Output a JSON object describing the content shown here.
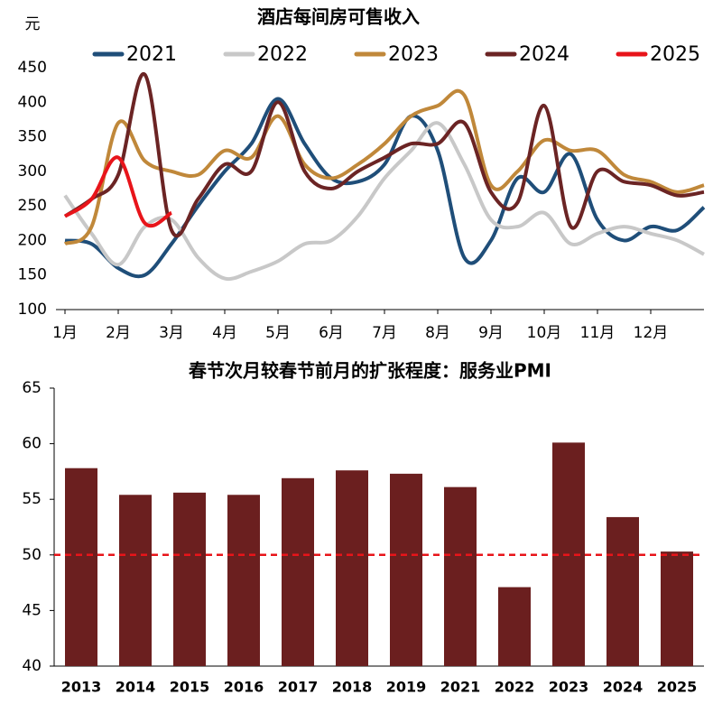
{
  "chart_data": [
    {
      "type": "line",
      "title": "酒店每间房可售收入",
      "y_label": "元",
      "x": [
        1,
        1.5,
        2,
        2.5,
        3,
        3.5,
        4,
        4.5,
        5,
        5.5,
        6,
        6.5,
        7,
        7.5,
        8,
        8.5,
        9,
        9.5,
        10,
        10.5,
        11,
        11.5,
        12,
        12.5,
        13
      ],
      "xlim": [
        1,
        13
      ],
      "xticks": [
        {
          "value": 1,
          "label": "1月"
        },
        {
          "value": 2,
          "label": "2月"
        },
        {
          "value": 3,
          "label": "3月"
        },
        {
          "value": 4,
          "label": "4月"
        },
        {
          "value": 5,
          "label": "5月"
        },
        {
          "value": 6,
          "label": "6月"
        },
        {
          "value": 7,
          "label": "7月"
        },
        {
          "value": 8,
          "label": "8月"
        },
        {
          "value": 9,
          "label": "9月"
        },
        {
          "value": 10,
          "label": "10月"
        },
        {
          "value": 11,
          "label": "11月"
        },
        {
          "value": 12,
          "label": "12月"
        }
      ],
      "ylim": [
        100,
        450
      ],
      "yticks": [
        100,
        150,
        200,
        250,
        300,
        350,
        400,
        450
      ],
      "series": [
        {
          "name": "2021",
          "color": "#1f4e79",
          "values": [
            200,
            195,
            160,
            150,
            195,
            250,
            300,
            340,
            405,
            340,
            290,
            285,
            310,
            380,
            330,
            175,
            200,
            290,
            270,
            325,
            230,
            200,
            220,
            215,
            248
          ]
        },
        {
          "name": "2022",
          "color": "#c8c8c8",
          "values": [
            265,
            210,
            165,
            220,
            230,
            175,
            145,
            155,
            170,
            195,
            200,
            235,
            290,
            330,
            370,
            310,
            230,
            220,
            240,
            195,
            210,
            220,
            210,
            200,
            180
          ]
        },
        {
          "name": "2023",
          "color": "#c0883a",
          "values": [
            195,
            220,
            370,
            315,
            300,
            295,
            330,
            320,
            380,
            310,
            290,
            310,
            340,
            380,
            395,
            410,
            280,
            300,
            345,
            330,
            330,
            295,
            285,
            270,
            280
          ]
        },
        {
          "name": "2024",
          "color": "#6b2424",
          "values": [
            235,
            260,
            295,
            440,
            215,
            260,
            310,
            300,
            400,
            300,
            275,
            300,
            320,
            340,
            340,
            370,
            270,
            255,
            395,
            220,
            300,
            285,
            280,
            265,
            270
          ]
        },
        {
          "name": "2025",
          "color": "#e8141a",
          "values": [
            235,
            260,
            320,
            225,
            240,
            null,
            null,
            null,
            null,
            null,
            null,
            null,
            null,
            null,
            null,
            null,
            null,
            null,
            null,
            null,
            null,
            null,
            null,
            null,
            null
          ]
        }
      ]
    },
    {
      "type": "bar",
      "title": "春节次月较春节前月的扩张程度：服务业PMI",
      "categories": [
        "2013",
        "2014",
        "2015",
        "2016",
        "2017",
        "2018",
        "2019",
        "2021",
        "2022",
        "2023",
        "2024",
        "2025"
      ],
      "values": [
        57.8,
        55.4,
        55.6,
        55.4,
        56.9,
        57.6,
        57.3,
        56.1,
        47.1,
        60.1,
        53.4,
        50.3
      ],
      "color": "#6b1f1f",
      "ylim": [
        40,
        65
      ],
      "yticks": [
        40,
        45,
        50,
        55,
        60,
        65
      ],
      "reference_line": 50,
      "reference_color": "#e8141a"
    }
  ]
}
